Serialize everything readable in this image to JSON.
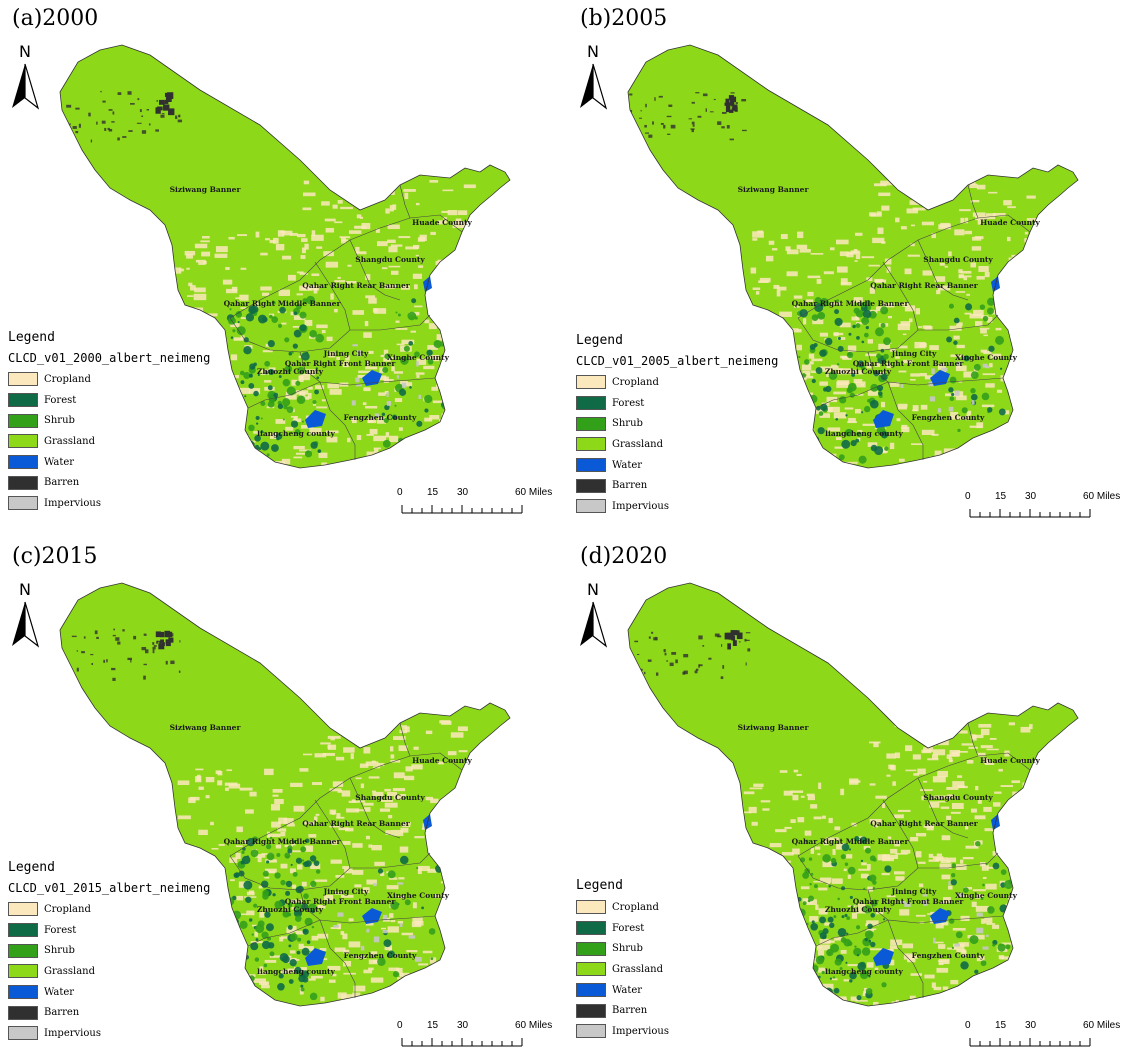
{
  "colors": {
    "cropland": "#fbe9bd",
    "forest": "#0e6b46",
    "shrub": "#33a01a",
    "grassland": "#8ed81a",
    "water": "#0a5ad8",
    "barren": "#303030",
    "impervious": "#c8c8c8"
  },
  "north_label": "N",
  "legend_items": [
    {
      "label": "Cropland",
      "color": "#fbe9bd"
    },
    {
      "label": "Forest",
      "color": "#0e6b46"
    },
    {
      "label": "Shrub",
      "color": "#33a01a"
    },
    {
      "label": "Grassland",
      "color": "#8ed81a"
    },
    {
      "label": "Water",
      "color": "#0a5ad8"
    },
    {
      "label": "Barren",
      "color": "#303030"
    },
    {
      "label": "Impervious",
      "color": "#c8c8c8"
    }
  ],
  "scale": {
    "ticks": [
      "0",
      "15",
      "30",
      "60 Miles"
    ]
  },
  "counties": {
    "siziwang": "Siziwang Banner",
    "huade": "Huade County",
    "shangdu": "Shangdu County",
    "qahar_rear": "Qahar Right Rear Banner",
    "qahar_middle": "Qahar Right Middle Banner",
    "jining": "Jining City",
    "qahar_front": "Qahar Right Front Banner",
    "xinghe": "Xinghe County",
    "zhuozhi": "Zhuozhi County",
    "fengzhen": "Fengzhen County",
    "liangcheng": "liangcheng county"
  },
  "panels": [
    {
      "title": "(a)2000",
      "legend_title": "Legend",
      "legend_layer": "CLCD_v01_2000_albert_neimeng"
    },
    {
      "title": "(b)2005",
      "legend_title": "Legend",
      "legend_layer": "CLCD_v01_2005_albert_neimeng"
    },
    {
      "title": "(c)2015",
      "legend_title": "Legend",
      "legend_layer": "CLCD_v01_2015_albert_neimeng"
    },
    {
      "title": "(d)2020",
      "legend_title": "Legend",
      "legend_layer": "",
      "legend_layer_note": ""
    }
  ]
}
